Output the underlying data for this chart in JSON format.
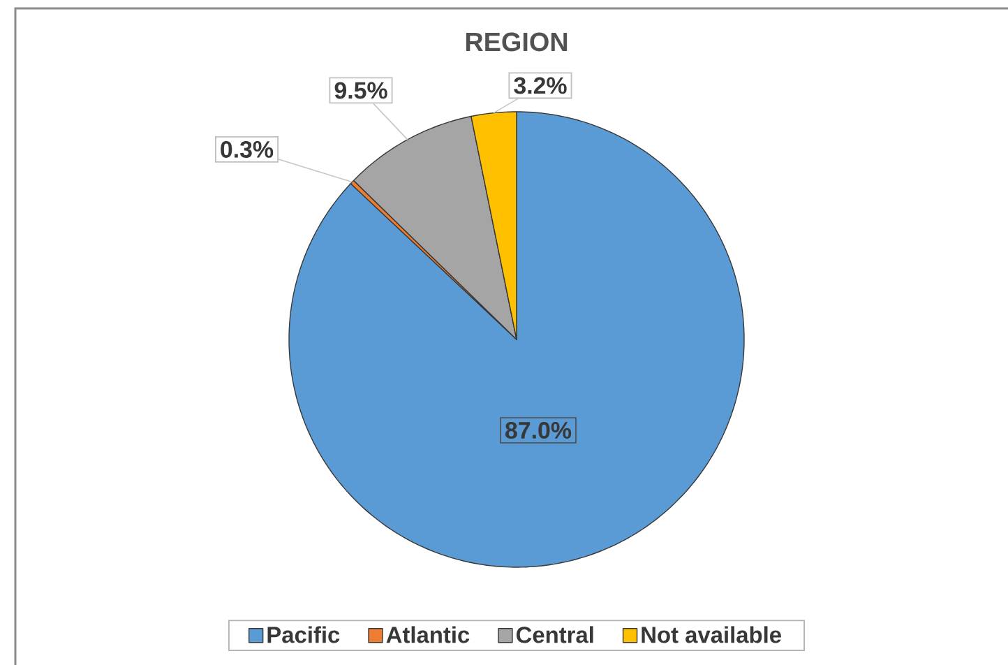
{
  "chart_data": {
    "type": "pie",
    "title": "REGION",
    "categories": [
      "Pacific",
      "Atlantic",
      "Central",
      "Not available"
    ],
    "values": [
      87.0,
      0.3,
      9.5,
      3.2
    ],
    "colors": [
      "#5b9bd5",
      "#ed7d31",
      "#a5a5a5",
      "#ffc000"
    ],
    "value_labels": [
      "87.0%",
      "0.3%",
      "9.5%",
      "3.2%"
    ],
    "legend": "bottom"
  }
}
